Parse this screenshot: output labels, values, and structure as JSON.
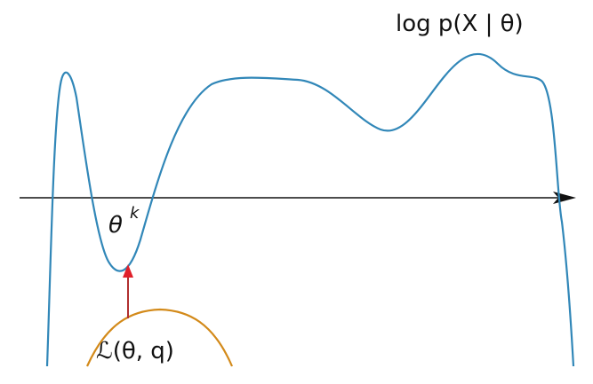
{
  "labels": {
    "objective": "log p(X | θ)",
    "theta": "θ",
    "theta_superscript": "k",
    "lower_bound": "ℒ(θ, q)"
  },
  "colors": {
    "objective_curve": "#3187b8",
    "lower_bound_curve": "#d38a1a",
    "arrow": "#e0202a",
    "axis": "#111111"
  }
}
